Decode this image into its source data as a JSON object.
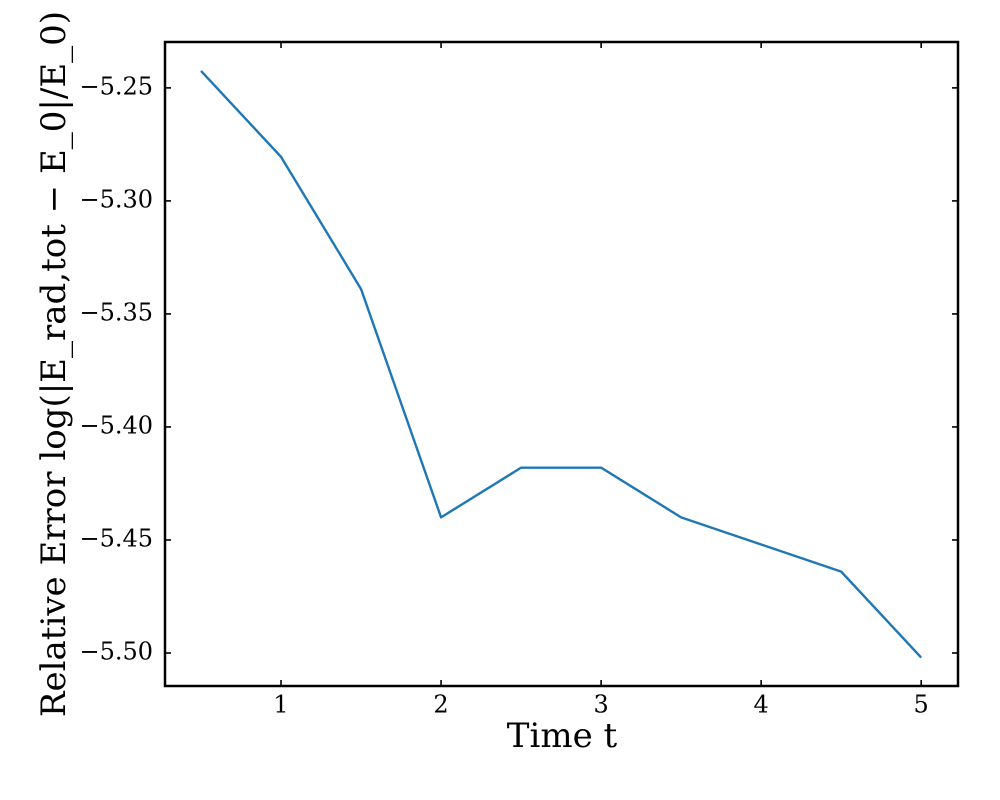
{
  "chart_data": {
    "type": "line",
    "x_label": "Time t",
    "y_label": "Relative Error log(|E_rad,tot − E_0|/E_0)",
    "x": [
      0.5,
      1,
      1.5,
      2,
      2.5,
      3,
      3.5,
      4,
      4.5,
      5
    ],
    "series": [
      {
        "color": "#1f77b4",
        "values": [
          -5.2425,
          -5.2805,
          -5.339,
          -5.44,
          -5.418,
          -5.418,
          -5.44,
          -5.452,
          -5.464,
          -5.502
        ]
      }
    ],
    "xlim": [
      0.275,
      5.23
    ],
    "ylim": [
      -5.5146,
      -5.2297
    ],
    "xticks": [
      1,
      2,
      3,
      4,
      5
    ],
    "yticks": [
      {
        "value": -5.25,
        "label": "−5.25"
      },
      {
        "value": -5.3,
        "label": "−5.30"
      },
      {
        "value": -5.35,
        "label": "−5.35"
      },
      {
        "value": -5.4,
        "label": "−5.40"
      },
      {
        "value": -5.45,
        "label": "−5.45"
      },
      {
        "value": -5.5,
        "label": "−5.50"
      }
    ],
    "grid": false
  }
}
